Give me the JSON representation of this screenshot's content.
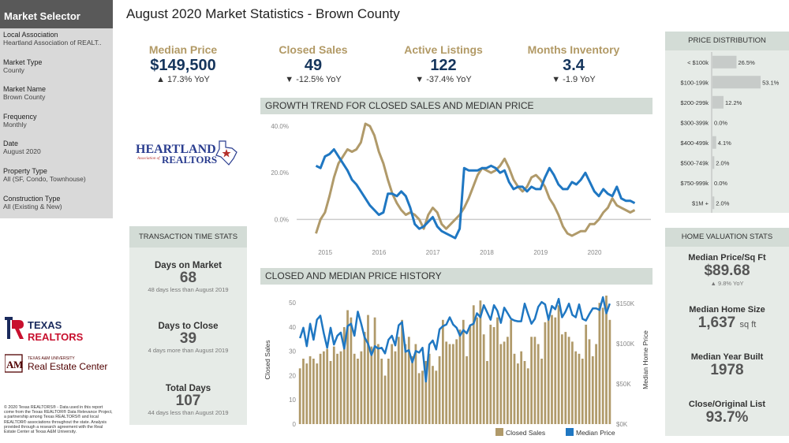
{
  "sidebar": {
    "title": "Market Selector",
    "filters": [
      {
        "label": "Local Association",
        "value": "Heartland Association of REALT.."
      },
      {
        "label": "Market Type",
        "value": "County"
      },
      {
        "label": "Market Name",
        "value": "Brown County"
      },
      {
        "label": "Frequency",
        "value": "Monthly"
      },
      {
        "label": "Date",
        "value": "August 2020"
      },
      {
        "label": "Property Type",
        "value": "All (SF, Condo, Townhouse)"
      },
      {
        "label": "Construction Type",
        "value": "All (Existing & New)"
      }
    ]
  },
  "logos": {
    "heartland": {
      "line1": "HEARTLAND",
      "line2": "Association of",
      "line3": "REALTORS"
    },
    "texas_realtors": {
      "line1": "TEXAS",
      "line2": "REALTORS"
    },
    "tamu": {
      "line1": "TEXAS A&M UNIVERSITY",
      "line2": "Real Estate Center"
    }
  },
  "disclaimer": "© 2020 Texas REALTORS® - Data used in this report come from the Texas REALTOR® Data Relevance Project, a partnership among Texas REALTORS® and local REALTOR® associations throughout the state. Analysis provided through a research agreement with the Real Estate Center at Texas A&M University.",
  "page_title": "August 2020 Market Statistics - Brown County",
  "kpis": [
    {
      "label": "Median Price",
      "value": "$149,500",
      "change": "▲ 17.3% YoY"
    },
    {
      "label": "Closed Sales",
      "value": "49",
      "change": "▼ -12.5% YoY"
    },
    {
      "label": "Active Listings",
      "value": "122",
      "change": "▼ -37.4% YoY"
    },
    {
      "label": "Months Inventory",
      "value": "3.4",
      "change": "▼ -1.9 YoY"
    }
  ],
  "transaction_time": {
    "title": "TRANSACTION TIME STATS",
    "items": [
      {
        "label": "Days on Market",
        "value": "68",
        "note": "48 days less than August 2019"
      },
      {
        "label": "Days to Close",
        "value": "39",
        "note": "4 days more than August 2019"
      },
      {
        "label": "Total Days",
        "value": "107",
        "note": "44 days less than August 2019"
      }
    ]
  },
  "home_valuation": {
    "title": "HOME VALUATION STATS",
    "items": [
      {
        "label": "Median Price/Sq Ft",
        "value": "$89.68",
        "unit": "",
        "note": "▲ 9.8% YoY"
      },
      {
        "label": "Median Home Size",
        "value": "1,637",
        "unit": "sq ft",
        "note": ""
      },
      {
        "label": "Median Year Built",
        "value": "1978",
        "unit": "",
        "note": ""
      },
      {
        "label": "Close/Original List",
        "value": "93.7%",
        "unit": "",
        "note": ""
      }
    ]
  },
  "colors": {
    "gold": "#b09a6a",
    "blue": "#1f77c2",
    "kpi_label": "#b29a66",
    "kpi_value": "#15355c",
    "panel": "#e6ebe7",
    "panel_header": "#d3dcd6",
    "dist_bar": "#c7cbc9"
  },
  "chart_data": [
    {
      "type": "bar",
      "title": "PRICE DISTRIBUTION",
      "categories": [
        "< $100k",
        "$100-199k",
        "$200-299k",
        "$300-399k",
        "$400-499k",
        "$500-749k",
        "$750-999k",
        "$1M +"
      ],
      "values": [
        26.5,
        53.1,
        12.2,
        0.0,
        4.1,
        2.0,
        0.0,
        2.0
      ],
      "value_labels": [
        "26.5%",
        "53.1%",
        "12.2%",
        "0.0%",
        "4.1%",
        "2.0%",
        "0.0%",
        "2.0%"
      ],
      "orientation": "horizontal",
      "xlim": [
        0,
        60
      ]
    },
    {
      "type": "line",
      "title": "GROWTH TREND FOR CLOSED SALES AND MEDIAN PRICE",
      "x_ticks": [
        "2015",
        "2016",
        "2017",
        "2018",
        "2019",
        "2020"
      ],
      "y_ticks": [
        "40.0%",
        "20.0%",
        "0.0%"
      ],
      "ylim": [
        -10,
        42
      ],
      "x_start": 2014.83,
      "x_step": 0.08333,
      "series": [
        {
          "name": "Closed Sales",
          "color": "#b09a6a",
          "values": [
            -6,
            0,
            3,
            10,
            18,
            24,
            27,
            30,
            29,
            30,
            33,
            41,
            40,
            36,
            29,
            24,
            17,
            11,
            7,
            4,
            2,
            3,
            2,
            0,
            -4,
            2,
            5,
            3,
            -2,
            -4,
            -2,
            0,
            2,
            5,
            9,
            14,
            19,
            22,
            21,
            20,
            21,
            23,
            26,
            22,
            17,
            14,
            12,
            14,
            18,
            19,
            17,
            14,
            9,
            6,
            2,
            -3,
            -6,
            -7,
            -6,
            -5,
            -5,
            -2,
            -2,
            0,
            3,
            5,
            9,
            6,
            5,
            4,
            3,
            4
          ]
        },
        {
          "name": "Median Price",
          "color": "#1f77c2",
          "values": [
            23,
            22,
            27,
            28,
            30,
            27,
            24,
            21,
            17,
            15,
            12,
            9,
            6,
            4,
            2,
            3,
            11,
            11,
            10,
            12,
            10,
            5,
            -2,
            -4,
            -3,
            -1,
            1,
            -3,
            -5,
            -6,
            -7,
            -8,
            -4,
            22,
            21,
            21,
            21,
            22,
            22,
            23,
            22,
            20,
            21,
            16,
            13,
            14,
            14,
            12,
            14,
            13,
            13,
            18,
            22,
            19,
            15,
            13,
            13,
            16,
            15,
            17,
            20,
            16,
            12,
            10,
            13,
            11,
            10,
            14,
            9,
            8,
            8,
            7
          ]
        }
      ]
    },
    {
      "type": "bar",
      "title": "CLOSED AND MEDIAN PRICE HISTORY",
      "ylabel": "Closed Sales",
      "y2label": "Median Home Price",
      "y_ticks": [
        "0",
        "10",
        "20",
        "30",
        "40",
        "50"
      ],
      "y2_ticks": [
        "$0K",
        "$50K",
        "$100K",
        "$150K"
      ],
      "ylim": [
        0,
        53
      ],
      "y2lim": [
        0,
        160
      ],
      "legend": [
        "Closed Sales",
        "Median Price"
      ],
      "legend_position": "bottom",
      "series": [
        {
          "name": "Closed Sales",
          "type": "bar",
          "color": "#b09a6a",
          "values": [
            23,
            27,
            25,
            28,
            27,
            25,
            29,
            30,
            31,
            26,
            32,
            29,
            30,
            40,
            47,
            44,
            29,
            27,
            30,
            38,
            45,
            32,
            44,
            33,
            27,
            20,
            27,
            33,
            30,
            36,
            43,
            33,
            36,
            28,
            33,
            21,
            22,
            26,
            29,
            24,
            22,
            28,
            43,
            34,
            33,
            33,
            35,
            39,
            43,
            28,
            41,
            49,
            44,
            51,
            37,
            26,
            41,
            40,
            44,
            33,
            34,
            36,
            43,
            29,
            25,
            30,
            26,
            23,
            36,
            36,
            33,
            27,
            42,
            43,
            45,
            44,
            49,
            37,
            38,
            36,
            34,
            30,
            29,
            27,
            41,
            35,
            28,
            33,
            50,
            48,
            53,
            43
          ]
        },
        {
          "name": "Median Price",
          "type": "line",
          "color": "#1f77c2",
          "values": [
            107,
            120,
            97,
            125,
            105,
            130,
            135,
            113,
            95,
            120,
            99,
            110,
            114,
            94,
            122,
            125,
            110,
            140,
            125,
            108,
            100,
            86,
            97,
            94,
            95,
            88,
            105,
            110,
            98,
            123,
            127,
            90,
            92,
            77,
            91,
            89,
            95,
            53,
            99,
            104,
            93,
            118,
            122,
            124,
            133,
            124,
            120,
            110,
            117,
            113,
            123,
            125,
            138,
            133,
            148,
            139,
            130,
            148,
            141,
            126,
            145,
            138,
            131,
            129,
            128,
            128,
            150,
            137,
            125,
            131,
            146,
            152,
            149,
            130,
            147,
            143,
            156,
            133,
            140,
            150,
            136,
            133,
            149,
            131,
            129,
            137,
            144,
            144,
            142,
            158,
            138,
            150
          ]
        }
      ]
    }
  ]
}
